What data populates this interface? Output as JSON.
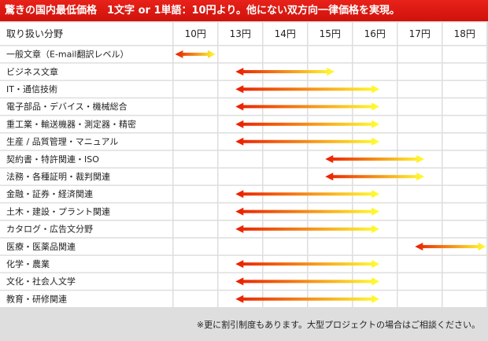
{
  "banner": {
    "title": "驚きの国内最低価格　1文字 or 1単語：10円より。他にない双方向一律価格を実現。"
  },
  "footnote": "※更に割引制度もあります。大型プロジェクトの場合はご相談ください。",
  "colors": {
    "banner": "#e3211a",
    "arrow_start": "#ea1c00",
    "arrow_end": "#ffff33"
  },
  "chart_data": {
    "type": "range-bar",
    "title": "",
    "header_label": "取り扱い分野",
    "price_columns": [
      "10円",
      "13円",
      "14円",
      "15円",
      "16円",
      "17円",
      "18円"
    ],
    "rows": [
      {
        "category": "一般文章（E-mail翻訳レベル）",
        "from": "10円",
        "to": "10円"
      },
      {
        "category": "ビジネス文章",
        "from": "13円",
        "to": "15円"
      },
      {
        "category": "IT・通信技術",
        "from": "13円",
        "to": "16円"
      },
      {
        "category": "電子部品・デバイス・機械総合",
        "from": "13円",
        "to": "16円"
      },
      {
        "category": "重工業・輸送機器・測定器・精密",
        "from": "13円",
        "to": "16円"
      },
      {
        "category": "生産 / 品質管理・マニュアル",
        "from": "13円",
        "to": "16円"
      },
      {
        "category": "契約書・特許関連・ISO",
        "from": "15円",
        "to": "17円"
      },
      {
        "category": "法務・各種証明・裁判関連",
        "from": "15円",
        "to": "17円"
      },
      {
        "category": "金融・証券・経済関連",
        "from": "13円",
        "to": "16円"
      },
      {
        "category": "土木・建設・プラント関連",
        "from": "13円",
        "to": "16円"
      },
      {
        "category": "カタログ・広告文分野",
        "from": "13円",
        "to": "16円"
      },
      {
        "category": "医療・医薬品関連",
        "from": "17円",
        "to": "18円"
      },
      {
        "category": "化学・農業",
        "from": "13円",
        "to": "16円"
      },
      {
        "category": "文化・社会人文学",
        "from": "13円",
        "to": "16円"
      },
      {
        "category": "教育・研修関連",
        "from": "13円",
        "to": "16円"
      }
    ]
  }
}
